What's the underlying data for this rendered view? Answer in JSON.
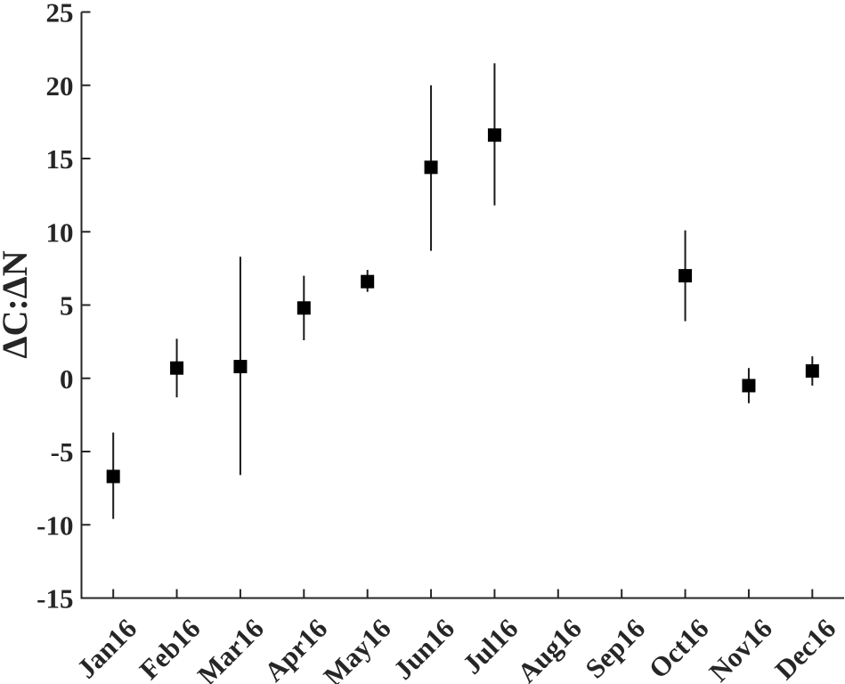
{
  "figure": {
    "background": "#ffffff"
  },
  "chart_data": {
    "type": "scatter",
    "subtype": "errorbar",
    "title": "",
    "xlabel": "",
    "ylabel": "ΔC:ΔN",
    "categories": [
      "Jan16",
      "Feb16",
      "Mar16",
      "Apr16",
      "May16",
      "Jun16",
      "Jul16",
      "Aug16",
      "Sep16",
      "Oct16",
      "Nov16",
      "Dec16"
    ],
    "values": [
      -6.7,
      0.7,
      0.8,
      4.8,
      6.6,
      14.4,
      16.6,
      null,
      null,
      7.0,
      -0.5,
      0.5
    ],
    "err_low": [
      -9.6,
      -1.3,
      -6.6,
      2.6,
      5.9,
      8.7,
      11.8,
      null,
      null,
      3.9,
      -1.7,
      -0.5
    ],
    "err_high": [
      -3.7,
      2.7,
      8.3,
      7.0,
      7.4,
      20.0,
      21.5,
      null,
      null,
      10.1,
      0.7,
      1.5
    ],
    "yticks": [
      25,
      20,
      15,
      10,
      5,
      0,
      -5,
      -10,
      -15
    ],
    "ylim": [
      -15,
      25
    ],
    "xlim_categories": [
      0.5,
      12.5
    ],
    "grid": false,
    "legend": "none",
    "marker": "filled-square",
    "xtick_angle_deg": 45,
    "colors": {
      "marker": "#000000",
      "errorbar": "#1a1a1a",
      "axis": "#262626",
      "text": "#262626",
      "background": "#ffffff"
    }
  }
}
